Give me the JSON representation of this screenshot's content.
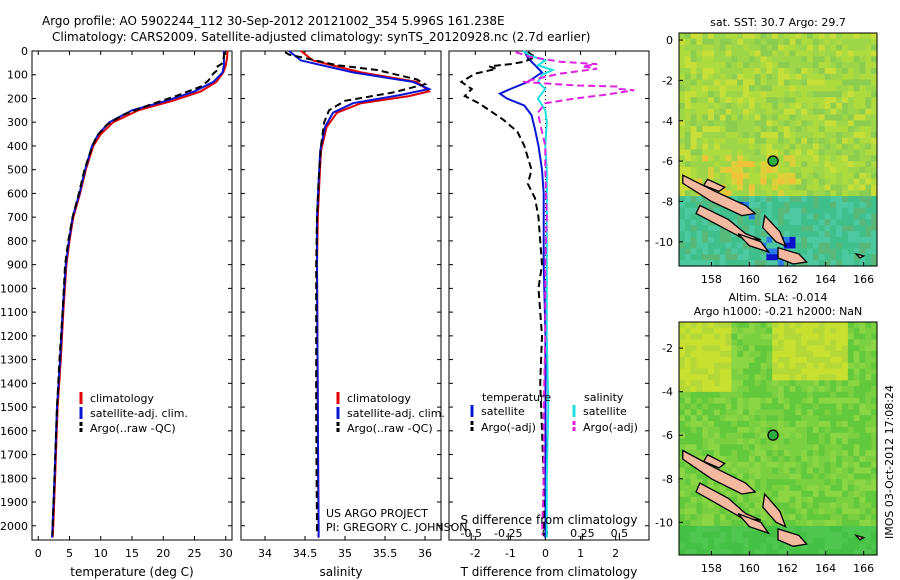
{
  "header": {
    "line1": "Argo profile: AO 5902244_112 30-Sep-2012 20121002_354 5.996S 161.238E",
    "line2": "Climatology: CARS2009. Satellite-adjusted climatology: synTS_20120928.nc (2.7d earlier)"
  },
  "project": {
    "line1": "US ARGO PROJECT",
    "line2": "PI: GREGORY C. JOHNSON"
  },
  "stamp": "IMOS 03-Oct-2012 17:08:24",
  "colors": {
    "climatology": "#e00000",
    "satellite": "#0a16d6",
    "argo": "#000000",
    "sat_salinity": "#1ee0e0",
    "argo_salinity": "#e020e0"
  },
  "legend_profile": [
    "climatology",
    "satellite-adj. clim.",
    "Argo(..raw -QC)"
  ],
  "legend_diff": {
    "temperature_head": "temperature",
    "salinity_head": "salinity",
    "items": [
      "satellite",
      "Argo(-adj)",
      "satellite",
      "Argo(-adj)"
    ]
  },
  "maps": {
    "sst_title": "sat. SST: 30.7 Argo: 29.7",
    "sla_title1": "Altim. SLA: -0.014",
    "sla_title2": "Argo h1000: -0.21 h2000: NaN",
    "lat_ticks": [
      "0",
      "-2",
      "-4",
      "-6",
      "-8",
      "-10"
    ],
    "lon_ticks": [
      "158",
      "160",
      "162",
      "164",
      "166"
    ],
    "argo_lon": 161.238,
    "argo_lat": -5.996
  },
  "chart_data": [
    {
      "type": "line",
      "xlabel": "temperature (deg C)",
      "xlim": [
        -1,
        31
      ],
      "ylim": [
        2060,
        0
      ],
      "xticks": [
        "0",
        "5",
        "10",
        "15",
        "20",
        "25",
        "30"
      ],
      "yticks": [
        "0",
        "100",
        "200",
        "300",
        "400",
        "500",
        "600",
        "700",
        "800",
        "900",
        "1000",
        "1100",
        "1200",
        "1300",
        "1400",
        "1500",
        "1600",
        "1700",
        "1800",
        "1900",
        "2000"
      ],
      "series": [
        {
          "name": "climatology",
          "points": [
            [
              30.3,
              0
            ],
            [
              30.2,
              30
            ],
            [
              30.0,
              60
            ],
            [
              29.6,
              90
            ],
            [
              28.5,
              130
            ],
            [
              26.0,
              170
            ],
            [
              21.5,
              210
            ],
            [
              16.0,
              250
            ],
            [
              12.0,
              300
            ],
            [
              10.0,
              350
            ],
            [
              8.8,
              400
            ],
            [
              7.6,
              500
            ],
            [
              6.7,
              600
            ],
            [
              5.6,
              700
            ],
            [
              5.0,
              800
            ],
            [
              4.5,
              900
            ],
            [
              4.0,
              1100
            ],
            [
              3.6,
              1300
            ],
            [
              3.1,
              1500
            ],
            [
              2.7,
              1800
            ],
            [
              2.4,
              2000
            ],
            [
              2.3,
              2050
            ]
          ]
        },
        {
          "name": "satellite-adj. clim.",
          "points": [
            [
              29.7,
              0
            ],
            [
              29.7,
              30
            ],
            [
              29.7,
              60
            ],
            [
              29.5,
              90
            ],
            [
              28.0,
              130
            ],
            [
              25.0,
              170
            ],
            [
              20.5,
              210
            ],
            [
              15.0,
              250
            ],
            [
              11.4,
              300
            ],
            [
              9.6,
              350
            ],
            [
              8.6,
              400
            ],
            [
              7.5,
              500
            ],
            [
              6.6,
              600
            ],
            [
              5.5,
              700
            ],
            [
              4.9,
              800
            ],
            [
              4.4,
              900
            ],
            [
              3.9,
              1100
            ],
            [
              3.5,
              1300
            ],
            [
              3.0,
              1500
            ],
            [
              2.6,
              1800
            ],
            [
              2.3,
              2000
            ],
            [
              2.2,
              2050
            ]
          ]
        },
        {
          "name": "Argo(..raw -QC)",
          "points": [
            [
              29.8,
              5
            ],
            [
              29.7,
              25
            ],
            [
              29.5,
              45
            ],
            [
              29.3,
              55
            ],
            [
              28.7,
              65
            ],
            [
              28.9,
              75
            ],
            [
              28.0,
              95
            ],
            [
              27.2,
              125
            ],
            [
              26.0,
              150
            ],
            [
              22.0,
              190
            ],
            [
              17.5,
              230
            ],
            [
              13.5,
              270
            ],
            [
              11.0,
              310
            ],
            [
              9.3,
              360
            ],
            [
              8.4,
              420
            ],
            [
              7.4,
              500
            ],
            [
              6.5,
              600
            ],
            [
              5.5,
              700
            ],
            [
              4.8,
              800
            ],
            [
              4.3,
              900
            ],
            [
              3.9,
              1100
            ],
            [
              3.4,
              1300
            ],
            [
              3.0,
              1500
            ],
            [
              2.6,
              1800
            ],
            [
              2.3,
              2000
            ],
            [
              2.3,
              2040
            ]
          ]
        }
      ]
    },
    {
      "type": "line",
      "xlabel": "salinity",
      "xlim": [
        33.7,
        36.2
      ],
      "ylim": [
        2060,
        0
      ],
      "xticks": [
        "34",
        "34.5",
        "35",
        "35.5",
        "36"
      ],
      "series": [
        {
          "name": "climatology",
          "points": [
            [
              34.45,
              0
            ],
            [
              34.6,
              40
            ],
            [
              35.2,
              90
            ],
            [
              35.9,
              130
            ],
            [
              36.05,
              170
            ],
            [
              35.8,
              190
            ],
            [
              35.2,
              220
            ],
            [
              34.9,
              260
            ],
            [
              34.77,
              320
            ],
            [
              34.7,
              420
            ],
            [
              34.68,
              550
            ],
            [
              34.66,
              700
            ],
            [
              34.65,
              900
            ],
            [
              34.655,
              1200
            ],
            [
              34.66,
              1500
            ],
            [
              34.665,
              1800
            ],
            [
              34.67,
              2000
            ],
            [
              34.67,
              2050
            ]
          ]
        },
        {
          "name": "satellite-adj. clim.",
          "points": [
            [
              34.3,
              0
            ],
            [
              34.45,
              40
            ],
            [
              35.1,
              90
            ],
            [
              35.85,
              130
            ],
            [
              36.05,
              160
            ],
            [
              35.7,
              185
            ],
            [
              35.1,
              220
            ],
            [
              34.85,
              260
            ],
            [
              34.75,
              320
            ],
            [
              34.69,
              420
            ],
            [
              34.67,
              550
            ],
            [
              34.65,
              700
            ],
            [
              34.65,
              900
            ],
            [
              34.655,
              1200
            ],
            [
              34.66,
              1500
            ],
            [
              34.665,
              1800
            ],
            [
              34.67,
              2000
            ],
            [
              34.67,
              2050
            ]
          ]
        },
        {
          "name": "Argo(..raw -QC)",
          "points": [
            [
              34.25,
              5
            ],
            [
              34.3,
              15
            ],
            [
              34.5,
              30
            ],
            [
              34.9,
              60
            ],
            [
              35.4,
              80
            ],
            [
              35.9,
              120
            ],
            [
              36.0,
              140
            ],
            [
              35.6,
              175
            ],
            [
              35.0,
              210
            ],
            [
              34.8,
              250
            ],
            [
              34.74,
              300
            ],
            [
              34.7,
              400
            ],
            [
              34.67,
              550
            ],
            [
              34.65,
              700
            ],
            [
              34.64,
              900
            ],
            [
              34.64,
              1200
            ],
            [
              34.64,
              1500
            ],
            [
              34.645,
              1800
            ],
            [
              34.65,
              2000
            ],
            [
              34.65,
              2040
            ]
          ]
        }
      ]
    },
    {
      "type": "line",
      "xlabel": "T difference from climatology",
      "xlabel_top": "S difference from climatology",
      "xlim_T": [
        -2.75,
        2.95
      ],
      "xlim_S": [
        -0.65,
        0.7
      ],
      "ylim": [
        2060,
        0
      ],
      "xticks_T": [
        "-2",
        "-1",
        "0",
        "1",
        "2"
      ],
      "xticks_S": [
        "-0.5",
        "-0.25",
        "0",
        "0.25",
        "0.5"
      ],
      "series": [
        {
          "name": "temperature satellite",
          "axis": "T",
          "points": [
            [
              -0.6,
              0
            ],
            [
              -0.5,
              30
            ],
            [
              -0.3,
              60
            ],
            [
              -0.1,
              90
            ],
            [
              -0.5,
              130
            ],
            [
              -1.0,
              160
            ],
            [
              -1.3,
              180
            ],
            [
              -1.1,
              200
            ],
            [
              -0.6,
              230
            ],
            [
              -0.4,
              270
            ],
            [
              -0.3,
              330
            ],
            [
              -0.2,
              400
            ],
            [
              -0.1,
              500
            ],
            [
              -0.05,
              600
            ],
            [
              -0.05,
              700
            ],
            [
              -0.05,
              900
            ],
            [
              0.0,
              1200
            ],
            [
              0.0,
              1600
            ],
            [
              0.0,
              2000
            ],
            [
              0.0,
              2050
            ]
          ]
        },
        {
          "name": "temperature Argo(-adj)",
          "axis": "T",
          "points": [
            [
              -0.5,
              5
            ],
            [
              -0.3,
              25
            ],
            [
              -0.6,
              45
            ],
            [
              -1.0,
              55
            ],
            [
              -1.6,
              65
            ],
            [
              -1.4,
              75
            ],
            [
              -2.0,
              95
            ],
            [
              -2.4,
              130
            ],
            [
              -2.1,
              160
            ],
            [
              -2.3,
              190
            ],
            [
              -1.9,
              220
            ],
            [
              -1.6,
              250
            ],
            [
              -1.2,
              290
            ],
            [
              -0.8,
              340
            ],
            [
              -0.6,
              400
            ],
            [
              -0.5,
              450
            ],
            [
              -0.4,
              500
            ],
            [
              -0.5,
              560
            ],
            [
              -0.3,
              620
            ],
            [
              -0.2,
              700
            ],
            [
              -0.15,
              800
            ],
            [
              -0.1,
              900
            ],
            [
              -0.2,
              1000
            ],
            [
              -0.1,
              1200
            ],
            [
              -0.15,
              1400
            ],
            [
              -0.1,
              1600
            ],
            [
              -0.05,
              1800
            ],
            [
              -0.05,
              2000
            ],
            [
              -0.05,
              2040
            ]
          ]
        },
        {
          "name": "salinity satellite",
          "axis": "S",
          "points": [
            [
              -0.15,
              0
            ],
            [
              -0.1,
              20
            ],
            [
              0.0,
              40
            ],
            [
              -0.05,
              60
            ],
            [
              0.05,
              80
            ],
            [
              -0.02,
              100
            ],
            [
              -0.05,
              130
            ],
            [
              0.0,
              160
            ],
            [
              -0.05,
              200
            ],
            [
              0.0,
              250
            ],
            [
              0.01,
              300
            ],
            [
              0.0,
              400
            ],
            [
              0.01,
              500
            ],
            [
              0.01,
              700
            ],
            [
              0.01,
              900
            ],
            [
              0.01,
              1200
            ],
            [
              0.02,
              1500
            ],
            [
              0.01,
              1800
            ],
            [
              0.01,
              2000
            ],
            [
              0.01,
              2050
            ]
          ]
        },
        {
          "name": "salinity Argo(-adj)",
          "axis": "S",
          "points": [
            [
              -0.2,
              5
            ],
            [
              -0.1,
              25
            ],
            [
              0.1,
              45
            ],
            [
              0.35,
              55
            ],
            [
              0.25,
              65
            ],
            [
              0.35,
              75
            ],
            [
              0.1,
              95
            ],
            [
              -0.15,
              130
            ],
            [
              0.2,
              145
            ],
            [
              0.5,
              150
            ],
            [
              0.5,
              160
            ],
            [
              0.6,
              165
            ],
            [
              0.4,
              185
            ],
            [
              0.2,
              200
            ],
            [
              0.0,
              220
            ],
            [
              -0.05,
              260
            ],
            [
              -0.03,
              320
            ],
            [
              0.0,
              400
            ],
            [
              0.0,
              500
            ],
            [
              0.01,
              700
            ],
            [
              0.0,
              900
            ],
            [
              0.0,
              1200
            ],
            [
              -0.01,
              1500
            ],
            [
              -0.01,
              1800
            ],
            [
              -0.02,
              2000
            ],
            [
              -0.02,
              2040
            ]
          ]
        }
      ]
    }
  ]
}
